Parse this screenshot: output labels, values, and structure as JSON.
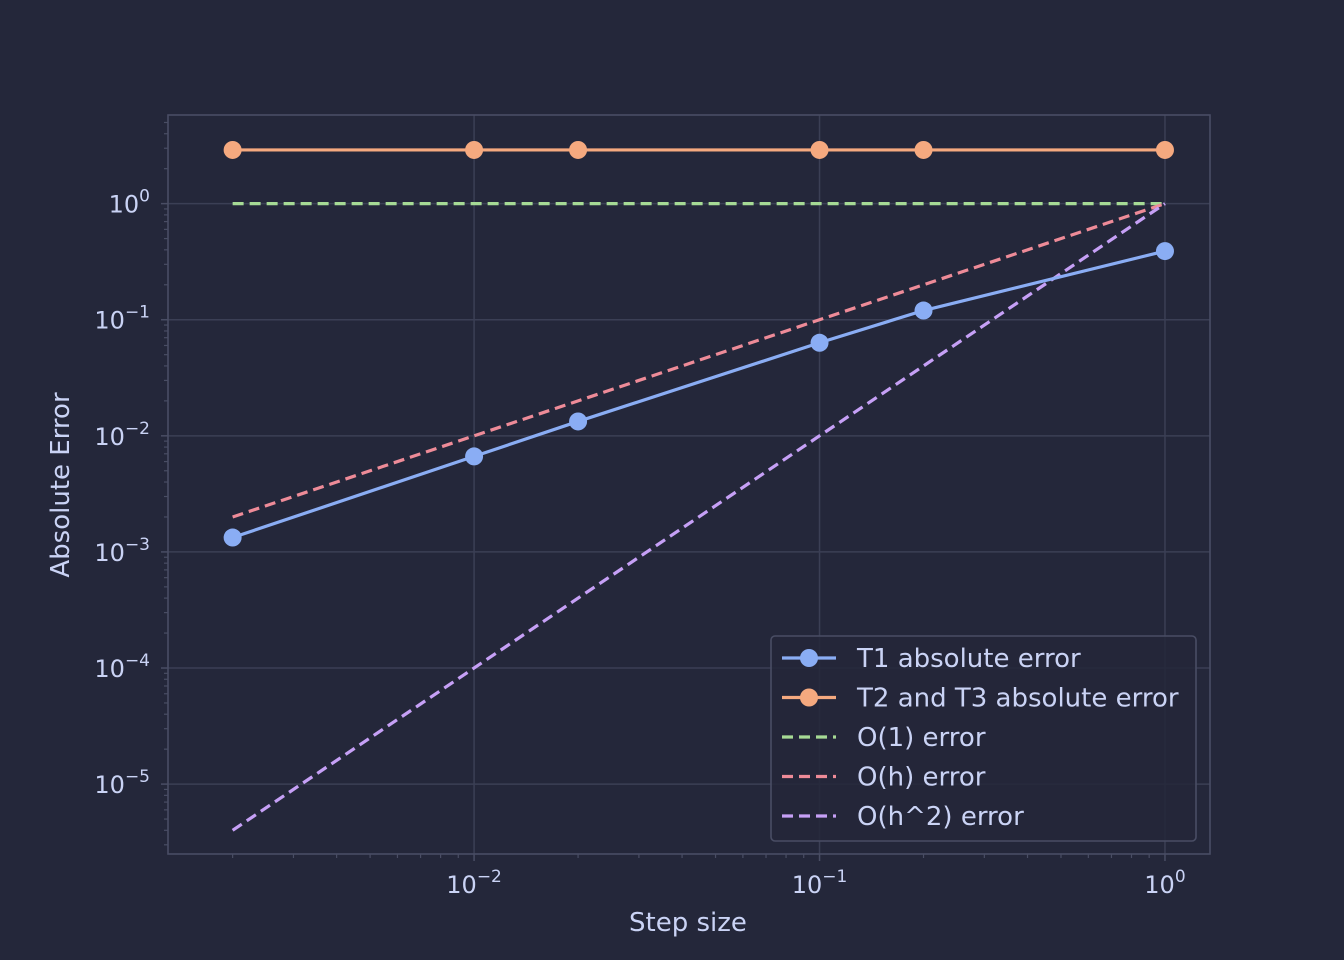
{
  "colors": {
    "background": "#24273a",
    "plot_frame": "#494d64",
    "grid": "#3b3f55",
    "text": "#cad3f5",
    "legend_bg": "#24273a",
    "legend_border": "#494d64"
  },
  "chart_data": {
    "type": "line",
    "xlabel": "Step size",
    "ylabel": "Absolute Error",
    "xscale": "log",
    "yscale": "log",
    "xlim": [
      0.0013,
      1.35
    ],
    "ylim": [
      2.5e-06,
      5.8
    ],
    "grid": true,
    "legend_position": "bottom-right",
    "x_ticks": [
      {
        "value": 0.01,
        "base": "10",
        "exp": "−2"
      },
      {
        "value": 0.1,
        "base": "10",
        "exp": "−1"
      },
      {
        "value": 1,
        "base": "10",
        "exp": "0"
      }
    ],
    "y_ticks": [
      {
        "value": 1,
        "base": "10",
        "exp": "0"
      },
      {
        "value": 0.1,
        "base": "10",
        "exp": "−1"
      },
      {
        "value": 0.01,
        "base": "10",
        "exp": "−2"
      },
      {
        "value": 0.001,
        "base": "10",
        "exp": "−3"
      },
      {
        "value": 0.0001,
        "base": "10",
        "exp": "−4"
      },
      {
        "value": 1e-05,
        "base": "10",
        "exp": "−5"
      }
    ],
    "series": [
      {
        "name": "T1 absolute error",
        "color": "#8aadf4",
        "style": "solid",
        "marker": "circle",
        "x": [
          0.002,
          0.01,
          0.02,
          0.1,
          0.2,
          1.0
        ],
        "y": [
          0.00133,
          0.00665,
          0.0133,
          0.0633,
          0.12,
          0.39
        ]
      },
      {
        "name": "T2 and T3 absolute error",
        "color": "#f5a97f",
        "style": "solid",
        "marker": "circle",
        "x": [
          0.002,
          0.01,
          0.02,
          0.1,
          0.2,
          1.0
        ],
        "y": [
          2.9,
          2.9,
          2.9,
          2.9,
          2.9,
          2.9
        ]
      },
      {
        "name": "O(1) error",
        "color": "#a6da95",
        "style": "dashed",
        "marker": "none",
        "x": [
          0.002,
          1.0
        ],
        "y": [
          1.0,
          1.0
        ]
      },
      {
        "name": "O(h) error",
        "color": "#ee8b98",
        "style": "dashed",
        "marker": "none",
        "x": [
          0.002,
          1.0
        ],
        "y": [
          0.002,
          1.0
        ]
      },
      {
        "name": "O(h^2) error",
        "color": "#c6a0f6",
        "style": "dashed",
        "marker": "none",
        "x": [
          0.002,
          1.0
        ],
        "y": [
          4e-06,
          1.0
        ]
      }
    ]
  }
}
